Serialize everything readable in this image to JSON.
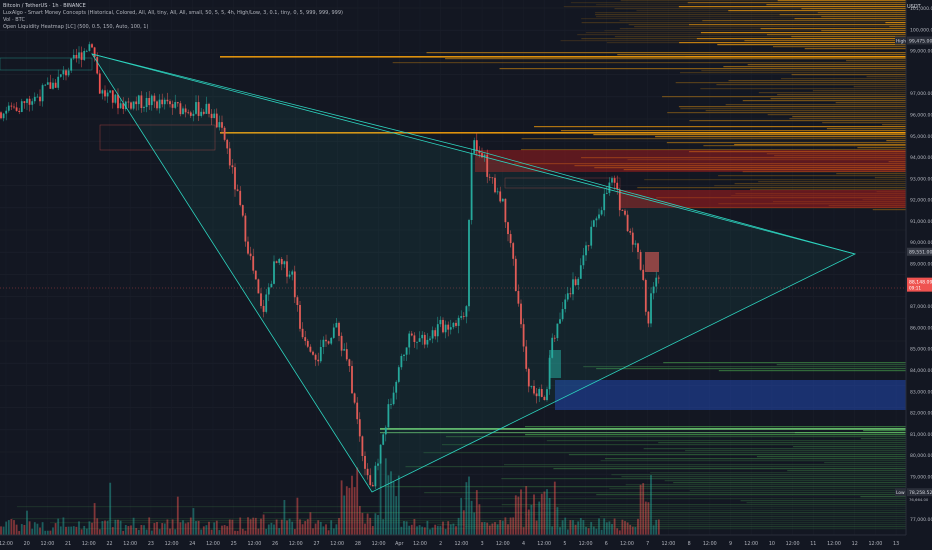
{
  "legend": {
    "symbol": "Bitcoin / TetherUS · 1h · BINANCE",
    "indicator1": "LuxAlgo - Smart Money Concepts (Historical, Colored, All, All, tiny, All, All, small, 50, 5, 5, 4h, High/Low, 3, 0.1, tiny, 0, 5, 999, 999, 999)",
    "indicator2": "Vol · BTC",
    "indicator3": "Open Liquidity Heatmap [LC] (500, 0.5, 150, Auto, 100, 1)"
  },
  "currency": "USDT",
  "price_axis": {
    "ticks": [
      "101,000.00",
      "100,000.00",
      "99,000.00",
      "97,000.00",
      "96,000.00",
      "95,000.00",
      "94,000.00",
      "93,000.00",
      "92,000.00",
      "91,000.00",
      "90,000.00",
      "89,000.00",
      "88,000.00",
      "87,000.00",
      "86,000.00",
      "85,000.00",
      "84,000.00",
      "83,000.00",
      "82,000.00",
      "81,000.00",
      "80,000.00",
      "79,000.00",
      "77,000.00"
    ],
    "high_tag": "High",
    "high_value": "99,475.00",
    "level_value": "89,551.00",
    "current_value": "88,148.09",
    "current_countdown": "09:11",
    "low_tag": "Low",
    "low_value": "78,258.52",
    "low_small": "76,664.00"
  },
  "time_axis": {
    "ticks": [
      "12:00",
      "20",
      "12:00",
      "21",
      "12:00",
      "22",
      "12:00",
      "23",
      "12:00",
      "24",
      "12:00",
      "25",
      "12:00",
      "26",
      "12:00",
      "27",
      "12:00",
      "28",
      "12:00",
      "Apr",
      "12:00",
      "2",
      "12:00",
      "3",
      "12:00",
      "4",
      "12:00",
      "5",
      "12:00",
      "6",
      "12:00",
      "7",
      "12:00",
      "8",
      "12:00",
      "9",
      "12:00",
      "10",
      "12:00",
      "11",
      "12:00",
      "12",
      "12:00",
      "13"
    ]
  },
  "colors": {
    "background": "#131722",
    "up": "#26a69a",
    "down": "#ef5350",
    "triangle": "#2dd4bf",
    "heat_orange": "#f59e0b",
    "heat_red": "#b71c1c",
    "heat_green": "#4caf50",
    "heat_blue": "#2962ff"
  }
}
